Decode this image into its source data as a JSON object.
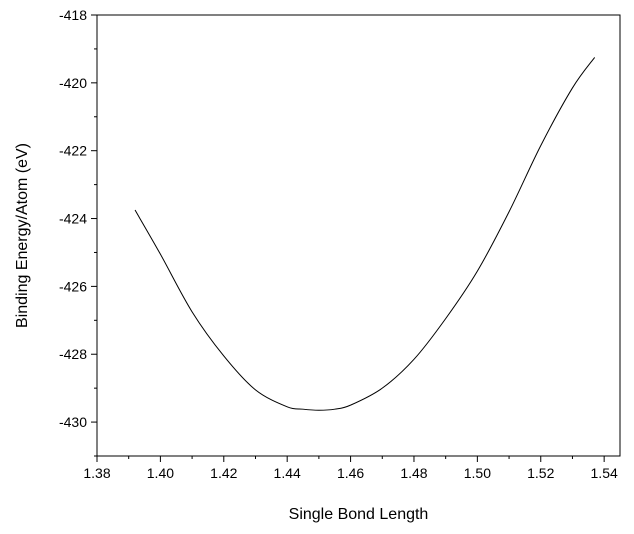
{
  "chart_data": {
    "type": "line",
    "title": "",
    "xlabel": "Single Bond Length",
    "ylabel": "Binding Energy/Atom (eV)",
    "xlim": [
      1.38,
      1.545
    ],
    "ylim": [
      -431.0,
      -418.0
    ],
    "xticks": [
      1.38,
      1.4,
      1.42,
      1.44,
      1.46,
      1.48,
      1.5,
      1.52,
      1.54
    ],
    "xtick_labels": [
      "1.38",
      "1.40",
      "1.42",
      "1.44",
      "1.46",
      "1.48",
      "1.50",
      "1.52",
      "1.54"
    ],
    "yticks": [
      -430,
      -428,
      -426,
      -424,
      -422,
      -420,
      -418
    ],
    "ytick_labels": [
      "-430",
      "-428",
      "-426",
      "-424",
      "-422",
      "-420",
      "-418"
    ],
    "grid": false,
    "line_color": "#000000",
    "series": [
      {
        "x": [
          1.392,
          1.4,
          1.41,
          1.42,
          1.43,
          1.44,
          1.445,
          1.45,
          1.455,
          1.46,
          1.47,
          1.48,
          1.49,
          1.5,
          1.51,
          1.52,
          1.53,
          1.537
        ],
        "y": [
          -423.75,
          -425.05,
          -426.75,
          -428.05,
          -429.05,
          -429.55,
          -429.62,
          -429.65,
          -429.62,
          -429.5,
          -429.0,
          -428.15,
          -426.95,
          -425.55,
          -423.8,
          -421.85,
          -420.15,
          -419.25
        ]
      }
    ]
  }
}
